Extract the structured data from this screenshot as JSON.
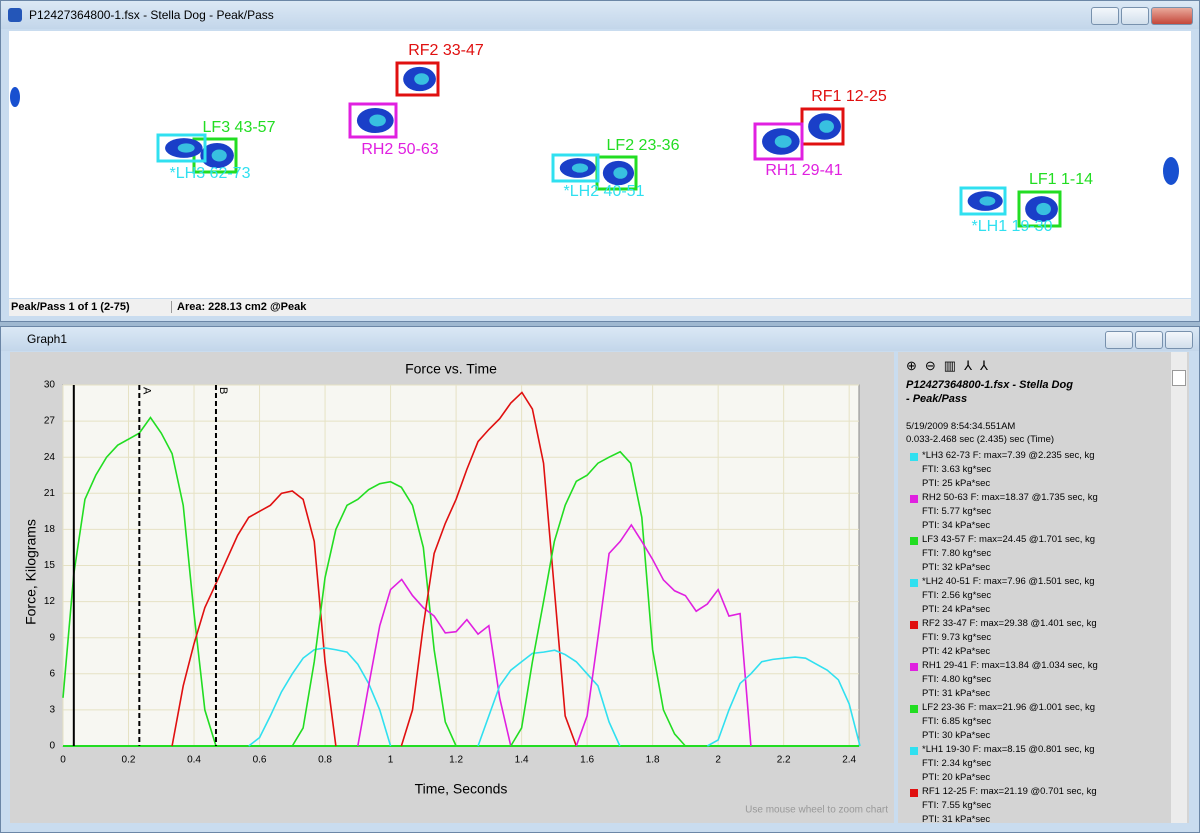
{
  "main_window": {
    "title": "P12427364800-1.fsx - Stella  Dog - Peak/Pass",
    "footprints": [
      {
        "label": "RF2 33-47",
        "color": "#e01010"
      },
      {
        "label": "RF1 12-25",
        "color": "#e01010"
      },
      {
        "label": "LF3 43-57",
        "color": "#22dd22"
      },
      {
        "label": "LF2 23-36",
        "color": "#22dd22"
      },
      {
        "label": "LF1 1-14",
        "color": "#22dd22"
      },
      {
        "label": "RH2 50-63",
        "color": "#e020e0"
      },
      {
        "label": "RH1 29-41",
        "color": "#e020e0"
      },
      {
        "label": "*LH3 62-73",
        "color": "#30e0f0"
      },
      {
        "label": "*LH2 40-51",
        "color": "#30e0f0"
      },
      {
        "label": "*LH1 19-30",
        "color": "#30e0f0"
      }
    ],
    "status": [
      "Peak/Pass 1 of 1 (2-75)",
      "Area: 228.13 cm2 @Peak"
    ]
  },
  "graph_window": {
    "title": "Graph1",
    "hint": "Use mouse wheel to zoom chart",
    "legend_panel": {
      "header": [
        "P12427364800-1.fsx - Stella  Dog",
        " - Peak/Pass"
      ],
      "info": [
        "5/19/2009 8:54:34.551AM",
        "0.033-2.468 sec (2.435) sec (Time)"
      ],
      "entries": [
        {
          "color": "#30e0f0",
          "text": "*LH3 62-73 F: max=7.39 @2.235 sec, kg",
          "fti": "FTI: 3.63 kg*sec",
          "pti": "PTI: 25 kPa*sec"
        },
        {
          "color": "#e020e0",
          "text": "RH2 50-63 F: max=18.37 @1.735 sec, kg",
          "fti": "FTI: 5.77 kg*sec",
          "pti": "PTI: 34 kPa*sec"
        },
        {
          "color": "#22dd22",
          "text": "LF3 43-57 F: max=24.45 @1.701 sec, kg",
          "fti": "FTI: 7.80 kg*sec",
          "pti": "PTI: 32 kPa*sec"
        },
        {
          "color": "#30e0f0",
          "text": "*LH2 40-51 F: max=7.96 @1.501 sec, kg",
          "fti": "FTI: 2.56 kg*sec",
          "pti": "PTI: 24 kPa*sec"
        },
        {
          "color": "#e01010",
          "text": "RF2 33-47 F: max=29.38 @1.401 sec, kg",
          "fti": "FTI: 9.73 kg*sec",
          "pti": "PTI: 42 kPa*sec"
        },
        {
          "color": "#e020e0",
          "text": "RH1 29-41 F: max=13.84 @1.034 sec, kg",
          "fti": "FTI: 4.80 kg*sec",
          "pti": "PTI: 31 kPa*sec"
        },
        {
          "color": "#22dd22",
          "text": "LF2 23-36 F: max=21.96 @1.001 sec, kg",
          "fti": "FTI: 6.85 kg*sec",
          "pti": "PTI: 30 kPa*sec"
        },
        {
          "color": "#30e0f0",
          "text": "*LH1 19-30 F: max=8.15 @0.801 sec, kg",
          "fti": "FTI: 2.34 kg*sec",
          "pti": "PTI: 20 kPa*sec"
        },
        {
          "color": "#e01010",
          "text": "RF1 12-25 F: max=21.19 @0.701 sec, kg",
          "fti": "FTI: 7.55 kg*sec",
          "pti": "PTI: 31 kPa*sec"
        }
      ]
    }
  },
  "chart_data": {
    "type": "line",
    "title": "Force vs. Time",
    "x_label": "Time, Seconds",
    "y_label": "Force, Kilograms",
    "xlim": [
      0,
      2.43
    ],
    "ylim": [
      0,
      30
    ],
    "xticks": [
      0,
      0.2,
      0.4,
      0.6,
      0.8,
      1,
      1.2,
      1.4,
      1.6,
      1.8,
      2,
      2.2,
      2.4
    ],
    "yticks": [
      0,
      3,
      6,
      9,
      12,
      15,
      18,
      21,
      24,
      27,
      30
    ],
    "grid": true,
    "cursors": [
      {
        "x": 0.033
      },
      {
        "label": "A",
        "x": 0.233
      },
      {
        "label": "B",
        "x": 0.467
      }
    ],
    "series": [
      {
        "color": "#22dd22",
        "x": [
          0,
          0.033,
          0.067,
          0.1,
          0.133,
          0.167,
          0.2,
          0.233,
          0.267,
          0.3,
          0.333,
          0.367,
          0.4,
          0.433,
          0.467
        ],
        "values": [
          4,
          14.3,
          20.5,
          22.5,
          24,
          25,
          25.5,
          26,
          27.3,
          26,
          24.3,
          20,
          11,
          3,
          0
        ]
      },
      {
        "color": "#e01010",
        "x": [
          0.333,
          0.367,
          0.4,
          0.433,
          0.467,
          0.5,
          0.533,
          0.567,
          0.6,
          0.633,
          0.667,
          0.7,
          0.733,
          0.767,
          0.8,
          0.833
        ],
        "values": [
          0,
          5,
          8.5,
          11.5,
          13.5,
          15.5,
          17.5,
          19,
          19.5,
          20,
          21,
          21.19,
          20.5,
          17,
          7,
          0
        ]
      },
      {
        "color": "#30e0f0",
        "x": [
          0.567,
          0.6,
          0.633,
          0.667,
          0.7,
          0.733,
          0.767,
          0.8,
          0.833,
          0.867,
          0.9,
          0.933,
          0.967,
          1.0
        ],
        "values": [
          0,
          0.7,
          2.5,
          4.5,
          6,
          7.3,
          8,
          8.15,
          8,
          7.8,
          6.8,
          5.2,
          3,
          0
        ]
      },
      {
        "color": "#22dd22",
        "x": [
          0.7,
          0.733,
          0.767,
          0.8,
          0.833,
          0.867,
          0.9,
          0.933,
          0.967,
          1.0,
          1.033,
          1.067,
          1.1,
          1.133,
          1.167,
          1.2
        ],
        "values": [
          0,
          1.5,
          7,
          14,
          18,
          20,
          20.5,
          21.3,
          21.8,
          21.96,
          21.5,
          20,
          16.5,
          8,
          2,
          0
        ]
      },
      {
        "color": "#e020e0",
        "x": [
          0.9,
          0.933,
          0.967,
          1.0,
          1.034,
          1.067,
          1.1,
          1.133,
          1.167,
          1.2,
          1.233,
          1.267,
          1.3,
          1.333,
          1.367
        ],
        "values": [
          0,
          5,
          10,
          13,
          13.84,
          12.5,
          11.5,
          10.8,
          9.4,
          9.5,
          10.5,
          9.3,
          10,
          4,
          0
        ]
      },
      {
        "color": "#e01010",
        "x": [
          1.033,
          1.067,
          1.1,
          1.133,
          1.167,
          1.2,
          1.233,
          1.267,
          1.3,
          1.333,
          1.367,
          1.401,
          1.433,
          1.467,
          1.5,
          1.533,
          1.567
        ],
        "values": [
          0,
          3,
          10,
          16,
          18.5,
          20.5,
          23,
          25.3,
          26.3,
          27.2,
          28.5,
          29.38,
          28,
          23.5,
          13,
          2.5,
          0
        ]
      },
      {
        "color": "#30e0f0",
        "x": [
          1.267,
          1.3,
          1.333,
          1.367,
          1.4,
          1.433,
          1.467,
          1.501,
          1.533,
          1.567,
          1.6,
          1.633,
          1.667,
          1.7
        ],
        "values": [
          0,
          2.5,
          5,
          6.3,
          7,
          7.7,
          7.8,
          7.96,
          7.6,
          7,
          6,
          5,
          2,
          0
        ]
      },
      {
        "color": "#22dd22",
        "x": [
          1.367,
          1.4,
          1.433,
          1.467,
          1.5,
          1.533,
          1.567,
          1.6,
          1.633,
          1.667,
          1.701,
          1.733,
          1.767,
          1.8,
          1.833,
          1.867,
          1.9
        ],
        "values": [
          0,
          1.5,
          7,
          12,
          17,
          20,
          22,
          22.5,
          23.5,
          24,
          24.45,
          23.5,
          19,
          8,
          3,
          1,
          0
        ]
      },
      {
        "color": "#e020e0",
        "x": [
          1.567,
          1.6,
          1.633,
          1.667,
          1.701,
          1.735,
          1.767,
          1.8,
          1.833,
          1.867,
          1.9,
          1.933,
          1.967,
          2.0,
          2.033,
          2.067,
          2.1
        ],
        "values": [
          0,
          2.5,
          9,
          16,
          17,
          18.37,
          17,
          15.5,
          13.8,
          12.9,
          12.5,
          11.2,
          11.8,
          13,
          10.8,
          11,
          0
        ]
      },
      {
        "color": "#30e0f0",
        "x": [
          1.967,
          2.0,
          2.033,
          2.067,
          2.1,
          2.133,
          2.167,
          2.2,
          2.235,
          2.267,
          2.3,
          2.333,
          2.367,
          2.4,
          2.433
        ],
        "values": [
          0,
          0.5,
          3,
          5.2,
          6,
          7,
          7.2,
          7.3,
          7.39,
          7.3,
          6.8,
          6.3,
          5.5,
          3.5,
          0
        ]
      }
    ]
  }
}
